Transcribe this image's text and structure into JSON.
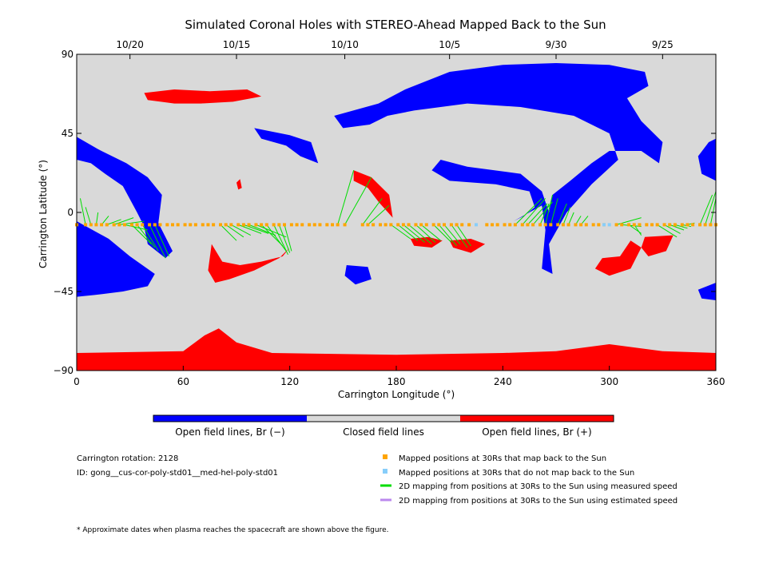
{
  "chart_data": {
    "type": "heatmap",
    "title": "Simulated Coronal Holes with STEREO-Ahead Mapped Back to the Sun",
    "xlabel": "Carrington Longitude (°)",
    "ylabel": "Carrington Latitude (°)",
    "xlim": [
      0,
      360
    ],
    "ylim": [
      -90,
      90
    ],
    "x_ticks": [
      0,
      60,
      120,
      180,
      240,
      300,
      360
    ],
    "y_ticks": [
      90,
      45,
      0,
      -45,
      -90
    ],
    "top_axis_dates": [
      {
        "label": "10/20",
        "lon": 30
      },
      {
        "label": "10/15",
        "lon": 90
      },
      {
        "label": "10/10",
        "lon": 151
      },
      {
        "label": "10/5",
        "lon": 210
      },
      {
        "label": "9/30",
        "lon": 270
      },
      {
        "label": "9/25",
        "lon": 330
      }
    ],
    "colors": {
      "open_negative": "#0000ff",
      "closed": "#d9d9d9",
      "open_positive": "#ff0000",
      "mapped": "#ffa500",
      "unmapped": "#87cefa",
      "measured": "#00dd00",
      "estimated": "#bb88ee"
    },
    "colorbar": {
      "labels": [
        "Open field lines, Br (−)",
        "Closed field lines",
        "Open field lines, Br (+)"
      ]
    },
    "regions": {
      "negative": [
        [
          [
            170,
            62
          ],
          [
            185,
            70
          ],
          [
            210,
            80
          ],
          [
            240,
            84
          ],
          [
            270,
            85
          ],
          [
            300,
            84
          ],
          [
            320,
            80
          ],
          [
            322,
            72
          ],
          [
            310,
            65
          ],
          [
            318,
            52
          ],
          [
            330,
            40
          ],
          [
            328,
            28
          ],
          [
            318,
            35
          ],
          [
            300,
            35
          ],
          [
            290,
            28
          ],
          [
            278,
            18
          ],
          [
            268,
            10
          ],
          [
            266,
            0
          ],
          [
            262,
            12
          ],
          [
            250,
            22
          ],
          [
            220,
            26
          ],
          [
            205,
            30
          ],
          [
            200,
            24
          ],
          [
            210,
            18
          ],
          [
            236,
            16
          ],
          [
            255,
            12
          ],
          [
            258,
            3
          ],
          [
            252,
            -2
          ],
          [
            246,
            -5
          ],
          [
            262,
            4
          ],
          [
            264,
            -10
          ],
          [
            262,
            -32
          ],
          [
            268,
            -35
          ],
          [
            266,
            -18
          ],
          [
            276,
            0
          ],
          [
            290,
            16
          ],
          [
            305,
            30
          ],
          [
            300,
            45
          ],
          [
            280,
            55
          ],
          [
            250,
            60
          ],
          [
            220,
            62
          ],
          [
            190,
            58
          ],
          [
            175,
            55
          ],
          [
            165,
            50
          ],
          [
            150,
            48
          ],
          [
            145,
            55
          ]
        ],
        [
          [
            0,
            43
          ],
          [
            12,
            36
          ],
          [
            28,
            28
          ],
          [
            40,
            20
          ],
          [
            48,
            10
          ],
          [
            46,
            -6
          ],
          [
            54,
            -22
          ],
          [
            50,
            -26
          ],
          [
            40,
            -18
          ],
          [
            38,
            -8
          ],
          [
            34,
            0
          ],
          [
            26,
            15
          ],
          [
            16,
            22
          ],
          [
            8,
            28
          ],
          [
            0,
            30
          ]
        ],
        [
          [
            0,
            -5
          ],
          [
            18,
            -15
          ],
          [
            30,
            -25
          ],
          [
            44,
            -35
          ],
          [
            40,
            -42
          ],
          [
            26,
            -45
          ],
          [
            10,
            -47
          ],
          [
            0,
            -48
          ]
        ],
        [
          [
            100,
            48
          ],
          [
            120,
            44
          ],
          [
            132,
            40
          ],
          [
            136,
            28
          ],
          [
            126,
            32
          ],
          [
            118,
            38
          ],
          [
            104,
            42
          ]
        ],
        [
          [
            152,
            -30
          ],
          [
            164,
            -31
          ],
          [
            166,
            -38
          ],
          [
            157,
            -41
          ],
          [
            151,
            -36
          ]
        ],
        [
          [
            356,
            40
          ],
          [
            360,
            42
          ],
          [
            360,
            18
          ],
          [
            352,
            22
          ],
          [
            350,
            32
          ]
        ],
        [
          [
            350,
            -44
          ],
          [
            360,
            -40
          ],
          [
            360,
            -50
          ],
          [
            352,
            -49
          ]
        ]
      ],
      "positive": [
        [
          [
            0,
            -80
          ],
          [
            60,
            -79
          ],
          [
            72,
            -70
          ],
          [
            80,
            -66
          ],
          [
            90,
            -74
          ],
          [
            110,
            -80
          ],
          [
            180,
            -81
          ],
          [
            240,
            -80
          ],
          [
            270,
            -79
          ],
          [
            300,
            -75
          ],
          [
            330,
            -79
          ],
          [
            360,
            -80
          ],
          [
            360,
            -90
          ],
          [
            0,
            -90
          ]
        ],
        [
          [
            38,
            68
          ],
          [
            55,
            70
          ],
          [
            75,
            69
          ],
          [
            96,
            70
          ],
          [
            104,
            66
          ],
          [
            88,
            63
          ],
          [
            70,
            62
          ],
          [
            55,
            62
          ],
          [
            40,
            64
          ]
        ],
        [
          [
            76,
            -18
          ],
          [
            82,
            -28
          ],
          [
            92,
            -30
          ],
          [
            104,
            -28
          ],
          [
            116,
            -25
          ],
          [
            120,
            -20
          ],
          [
            114,
            -26
          ],
          [
            100,
            -33
          ],
          [
            86,
            -38
          ],
          [
            78,
            -40
          ],
          [
            74,
            -33
          ]
        ],
        [
          [
            156,
            24
          ],
          [
            166,
            20
          ],
          [
            176,
            10
          ],
          [
            178,
            -3
          ],
          [
            170,
            6
          ],
          [
            164,
            14
          ],
          [
            156,
            18
          ]
        ],
        [
          [
            188,
            -15
          ],
          [
            198,
            -14
          ],
          [
            206,
            -16
          ],
          [
            200,
            -20
          ],
          [
            190,
            -19
          ]
        ],
        [
          [
            210,
            -16
          ],
          [
            222,
            -15
          ],
          [
            230,
            -18
          ],
          [
            222,
            -23
          ],
          [
            212,
            -20
          ]
        ],
        [
          [
            296,
            -26
          ],
          [
            306,
            -25
          ],
          [
            312,
            -16
          ],
          [
            318,
            -20
          ],
          [
            312,
            -32
          ],
          [
            300,
            -36
          ],
          [
            292,
            -32
          ]
        ],
        [
          [
            320,
            -14
          ],
          [
            336,
            -13
          ],
          [
            332,
            -22
          ],
          [
            322,
            -25
          ],
          [
            318,
            -20
          ]
        ],
        [
          [
            90,
            17
          ],
          [
            92,
            19
          ],
          [
            93,
            14
          ],
          [
            91,
            13
          ]
        ]
      ]
    },
    "sample_lat": -7,
    "mapped_lons": [
      0,
      5,
      8,
      11,
      14,
      17,
      21,
      24,
      27,
      31,
      34,
      37,
      41,
      44,
      47,
      51,
      54,
      57,
      61,
      64,
      67,
      71,
      74,
      77,
      81,
      84,
      87,
      91,
      94,
      97,
      101,
      104,
      107,
      111,
      114,
      117,
      121,
      124,
      127,
      131,
      134,
      137,
      141,
      144,
      147,
      151,
      161,
      164,
      167,
      171,
      174,
      177,
      181,
      184,
      187,
      191,
      194,
      197,
      201,
      204,
      207,
      211,
      214,
      217,
      221,
      231,
      234,
      237,
      241,
      244,
      247,
      251,
      254,
      257,
      261,
      264,
      267,
      271,
      274,
      277,
      281,
      284,
      287,
      291,
      294,
      297,
      304,
      307,
      311,
      314,
      317,
      321,
      324,
      327,
      331,
      334,
      337,
      341,
      344,
      347,
      351,
      354,
      357,
      360
    ],
    "unmapped_lons": [
      225,
      297,
      300
    ],
    "links": [
      [
        0,
        0,
        12
      ],
      [
        5,
        2,
        8
      ],
      [
        8,
        5,
        3
      ],
      [
        11,
        12,
        0
      ],
      [
        14,
        18,
        -2
      ],
      [
        17,
        25,
        -4
      ],
      [
        21,
        32,
        -3
      ],
      [
        24,
        38,
        -5
      ],
      [
        27,
        40,
        -10
      ],
      [
        31,
        42,
        -18
      ],
      [
        34,
        44,
        -20
      ],
      [
        37,
        46,
        -22
      ],
      [
        41,
        50,
        -26
      ],
      [
        44,
        52,
        -25
      ],
      [
        81,
        90,
        -16
      ],
      [
        84,
        94,
        -14
      ],
      [
        87,
        98,
        -13
      ],
      [
        91,
        104,
        -12
      ],
      [
        94,
        108,
        -12
      ],
      [
        97,
        112,
        -13
      ],
      [
        101,
        118,
        -14
      ],
      [
        104,
        116,
        -19
      ],
      [
        107,
        118,
        -22
      ],
      [
        111,
        119,
        -24
      ],
      [
        114,
        120,
        -23
      ],
      [
        117,
        121,
        -22
      ],
      [
        147,
        156,
        24
      ],
      [
        151,
        166,
        20
      ],
      [
        161,
        172,
        8
      ],
      [
        164,
        176,
        4
      ],
      [
        177,
        188,
        -15
      ],
      [
        181,
        192,
        -16
      ],
      [
        184,
        196,
        -17
      ],
      [
        187,
        200,
        -18
      ],
      [
        191,
        202,
        -17
      ],
      [
        194,
        205,
        -16
      ],
      [
        201,
        211,
        -17
      ],
      [
        204,
        214,
        -19
      ],
      [
        207,
        216,
        -18
      ],
      [
        211,
        220,
        -20
      ],
      [
        214,
        222,
        -19
      ],
      [
        247,
        262,
        8
      ],
      [
        251,
        264,
        8
      ],
      [
        254,
        265,
        5
      ],
      [
        257,
        268,
        6
      ],
      [
        261,
        266,
        5
      ],
      [
        264,
        268,
        10
      ],
      [
        267,
        271,
        8
      ],
      [
        271,
        276,
        5
      ],
      [
        274,
        278,
        3
      ],
      [
        277,
        280,
        0
      ],
      [
        281,
        284,
        -2
      ],
      [
        284,
        288,
        -2
      ],
      [
        304,
        318,
        -3
      ],
      [
        307,
        318,
        -8
      ],
      [
        311,
        318,
        -12
      ],
      [
        314,
        318,
        -13
      ],
      [
        327,
        338,
        -14
      ],
      [
        331,
        340,
        -12
      ],
      [
        334,
        342,
        -10
      ],
      [
        337,
        344,
        -9
      ],
      [
        341,
        346,
        -8
      ],
      [
        344,
        348,
        -6
      ],
      [
        351,
        358,
        10
      ],
      [
        354,
        360,
        12
      ],
      [
        357,
        360,
        8
      ]
    ],
    "legend": {
      "mapped": "Mapped positions at 30Rs that map back to the Sun",
      "unmapped": "Mapped positions at 30Rs that do not map back to the Sun",
      "measured": "2D mapping from positions at 30Rs to the Sun using measured speed",
      "estimated": "2D mapping from positions at 30Rs to the Sun using estimated speed"
    }
  },
  "info": {
    "rotation": "Carrington rotation: 2128",
    "id": "ID: gong__cus-cor-poly-std01__med-hel-poly-std01",
    "footnote": "* Approximate dates when plasma reaches the spacecraft are shown above the figure."
  }
}
